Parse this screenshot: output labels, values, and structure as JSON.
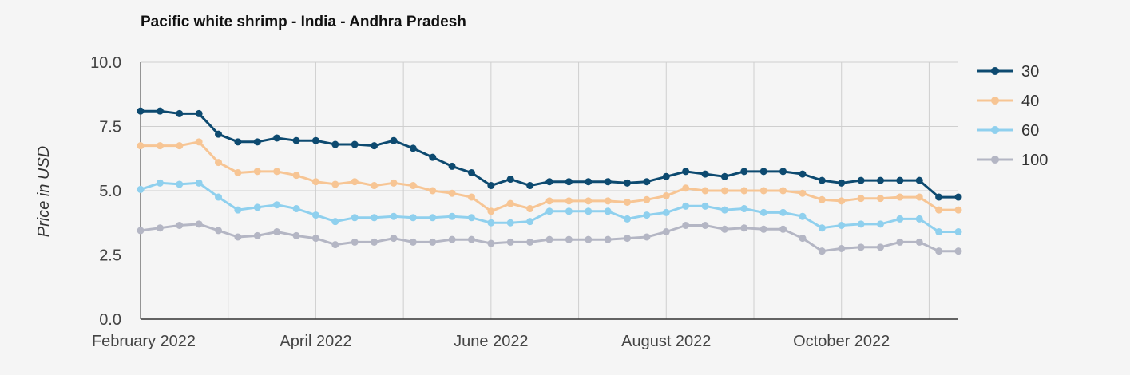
{
  "chart_data": {
    "type": "line",
    "title": "Pacific white shrimp - India - Andhra Pradesh",
    "xlabel": "",
    "ylabel": "Price in USD",
    "ylim": [
      0,
      10
    ],
    "yticks": [
      "0.0",
      "2.5",
      "5.0",
      "7.5",
      "10.0"
    ],
    "ytick_values": [
      0,
      2.5,
      5,
      7.5,
      10
    ],
    "xticks": [
      {
        "label": "February 2022",
        "index": 0
      },
      {
        "label": "April 2022",
        "index": 9
      },
      {
        "label": "June 2022",
        "index": 18
      },
      {
        "label": "August 2022",
        "index": 27
      },
      {
        "label": "October 2022",
        "index": 36
      }
    ],
    "vgrid_indices": [
      0,
      4.5,
      9,
      13.5,
      18,
      22.5,
      27,
      31.5,
      36,
      40.5
    ],
    "num_points": 43,
    "grid": true,
    "legend_position": "right",
    "series": [
      {
        "name": "30",
        "color": "#0d4a70",
        "values": [
          8.1,
          8.1,
          8.0,
          8.0,
          7.2,
          6.9,
          6.9,
          7.05,
          6.95,
          6.95,
          6.8,
          6.8,
          6.75,
          6.95,
          6.65,
          6.3,
          5.95,
          5.7,
          5.2,
          5.45,
          5.2,
          5.35,
          5.35,
          5.35,
          5.35,
          5.3,
          5.35,
          5.55,
          5.75,
          5.65,
          5.55,
          5.75,
          5.75,
          5.75,
          5.65,
          5.4,
          5.3,
          5.4,
          5.4,
          5.4,
          5.4,
          4.75,
          4.75
        ]
      },
      {
        "name": "40",
        "color": "#f7c594",
        "values": [
          6.75,
          6.75,
          6.75,
          6.9,
          6.1,
          5.7,
          5.75,
          5.75,
          5.6,
          5.35,
          5.25,
          5.35,
          5.2,
          5.3,
          5.2,
          5.0,
          4.9,
          4.75,
          4.2,
          4.5,
          4.3,
          4.6,
          4.6,
          4.6,
          4.6,
          4.55,
          4.65,
          4.8,
          5.1,
          5.0,
          5.0,
          5.0,
          5.0,
          5.0,
          4.9,
          4.65,
          4.6,
          4.7,
          4.7,
          4.75,
          4.75,
          4.25,
          4.25
        ]
      },
      {
        "name": "60",
        "color": "#8fd0ee",
        "values": [
          5.05,
          5.3,
          5.25,
          5.3,
          4.75,
          4.25,
          4.35,
          4.45,
          4.3,
          4.05,
          3.8,
          3.95,
          3.95,
          4.0,
          3.95,
          3.95,
          4.0,
          3.95,
          3.75,
          3.75,
          3.8,
          4.2,
          4.2,
          4.2,
          4.2,
          3.9,
          4.05,
          4.15,
          4.4,
          4.4,
          4.25,
          4.3,
          4.15,
          4.15,
          4.0,
          3.55,
          3.65,
          3.7,
          3.7,
          3.9,
          3.9,
          3.4,
          3.4
        ]
      },
      {
        "name": "100",
        "color": "#b4b6c4",
        "values": [
          3.45,
          3.55,
          3.65,
          3.7,
          3.45,
          3.2,
          3.25,
          3.4,
          3.25,
          3.15,
          2.9,
          3.0,
          3.0,
          3.15,
          3.0,
          3.0,
          3.1,
          3.1,
          2.95,
          3.0,
          3.0,
          3.1,
          3.1,
          3.1,
          3.1,
          3.15,
          3.2,
          3.4,
          3.65,
          3.65,
          3.5,
          3.55,
          3.5,
          3.5,
          3.15,
          2.65,
          2.75,
          2.8,
          2.8,
          3.0,
          3.0,
          2.65,
          2.65
        ]
      }
    ]
  }
}
